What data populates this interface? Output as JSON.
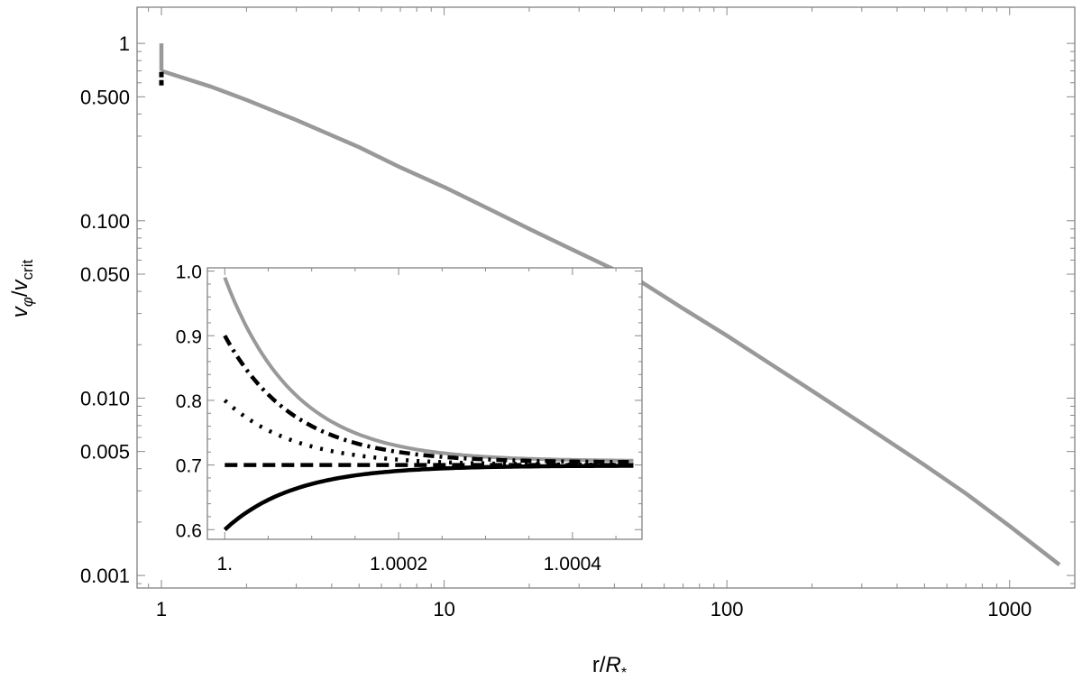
{
  "chart_data": [
    {
      "type": "line",
      "xlabel": "r/R*",
      "ylabel": "vφ/vcrit",
      "xscale": "log",
      "yscale": "log",
      "xlim": [
        0.82,
        1700
      ],
      "ylim": [
        0.00085,
        1.6
      ],
      "x_ticks": [
        1,
        10,
        100,
        1000
      ],
      "x_tick_labels": [
        "1",
        "10",
        "100",
        "1000"
      ],
      "y_ticks": [
        1,
        0.5,
        0.1,
        0.05,
        0.01,
        0.005,
        0.001
      ],
      "y_tick_labels": [
        "1",
        "0.500",
        "0.100",
        "0.050",
        "0.010",
        "0.005",
        "0.001"
      ],
      "grid": false,
      "series": [
        {
          "color": "#999999",
          "style": "solid",
          "x": [
            1,
            1.5,
            2,
            3,
            5,
            7,
            10,
            15,
            20,
            30,
            40,
            50,
            70,
            100,
            150,
            200,
            300,
            500,
            700,
            1000,
            1500
          ],
          "y": [
            0.7,
            0.57,
            0.48,
            0.37,
            0.26,
            0.2,
            0.155,
            0.113,
            0.09,
            0.066,
            0.053,
            0.045,
            0.032,
            0.0225,
            0.0148,
            0.011,
            0.0072,
            0.0042,
            0.0029,
            0.0019,
            0.00115
          ]
        },
        {
          "color": "#999999",
          "style": "solid",
          "x": [
            1,
            1
          ],
          "y": [
            0.7,
            1.0
          ]
        },
        {
          "color": "#000000",
          "style": "dashed",
          "x": [
            1,
            1
          ],
          "y": [
            0.58,
            0.7
          ]
        }
      ]
    },
    {
      "type": "line",
      "inset": true,
      "xlim": [
        0.99998,
        1.00048
      ],
      "ylim": [
        0.585,
        1.005
      ],
      "x_ticks": [
        1,
        1.0002,
        1.0004
      ],
      "x_tick_labels": [
        "1.",
        "1.0002",
        "1.0004"
      ],
      "y_ticks": [
        0.6,
        0.7,
        0.8,
        0.9,
        1.0
      ],
      "y_tick_labels": [
        "0.6",
        "0.7",
        "0.8",
        "0.9",
        "1.0"
      ],
      "grid": false,
      "series": [
        {
          "color": "#999999",
          "style": "solid",
          "v0": 0.99,
          "x": [
            1.0,
            1.00005,
            1.0001,
            1.00015,
            1.0002,
            1.00025,
            1.0003,
            1.00035,
            1.0004,
            1.00047
          ],
          "y": [
            0.99,
            0.89,
            0.826,
            0.784,
            0.757,
            0.739,
            0.726,
            0.717,
            0.711,
            0.706
          ]
        },
        {
          "color": "#000000",
          "style": "dashdot",
          "v0": 0.9,
          "x": [
            1.0,
            1.00005,
            1.0001,
            1.00015,
            1.0002,
            1.00025,
            1.0003,
            1.00035,
            1.0004,
            1.00047
          ],
          "y": [
            0.9,
            0.835,
            0.792,
            0.764,
            0.745,
            0.731,
            0.72,
            0.713,
            0.708,
            0.704
          ]
        },
        {
          "color": "#000000",
          "style": "dotted",
          "v0": 0.8,
          "x": [
            1.0,
            1.00005,
            1.0001,
            1.00015,
            1.0002,
            1.00025,
            1.0003,
            1.00035,
            1.0004,
            1.00047
          ],
          "y": [
            0.8,
            0.766,
            0.744,
            0.729,
            0.718,
            0.711,
            0.706,
            0.703,
            0.701,
            0.7
          ]
        },
        {
          "color": "#000000",
          "style": "dashed",
          "v0": 0.7,
          "x": [
            1.0,
            1.00005,
            1.0001,
            1.00015,
            1.0002,
            1.00025,
            1.0003,
            1.00035,
            1.0004,
            1.00047
          ],
          "y": [
            0.7,
            0.7,
            0.7,
            0.7,
            0.7,
            0.7,
            0.7,
            0.7,
            0.7,
            0.7
          ]
        },
        {
          "color": "#000000",
          "style": "solid",
          "v0": 0.6,
          "x": [
            1.0,
            1.00005,
            1.0001,
            1.00015,
            1.0002,
            1.00025,
            1.0003,
            1.00035,
            1.0004,
            1.00047
          ],
          "y": [
            0.6,
            0.634,
            0.656,
            0.671,
            0.681,
            0.688,
            0.693,
            0.696,
            0.698,
            0.699
          ]
        }
      ]
    }
  ]
}
